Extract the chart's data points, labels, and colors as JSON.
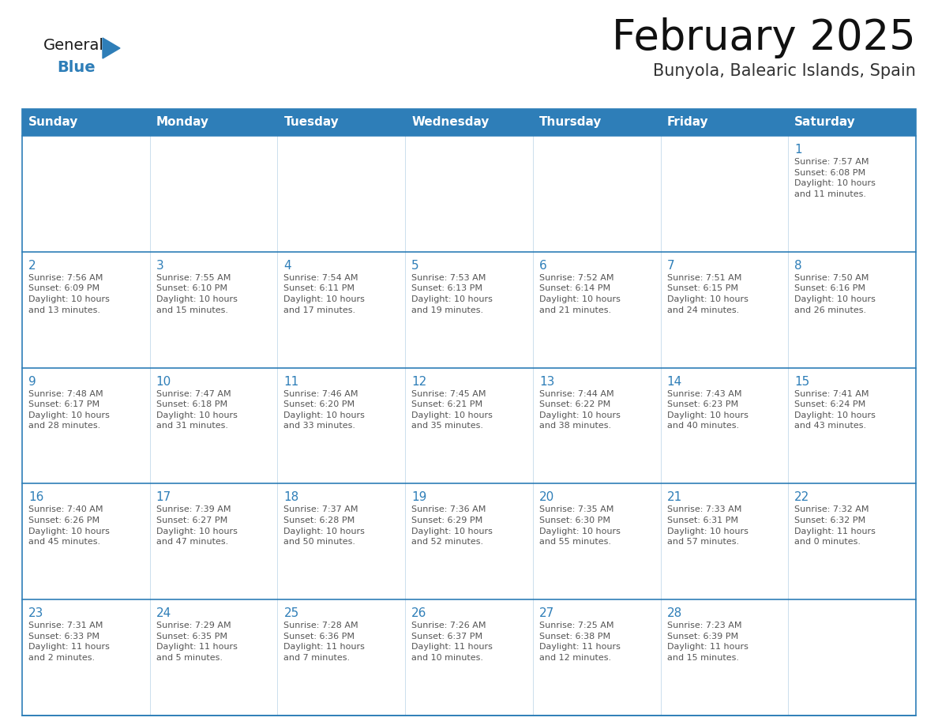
{
  "title": "February 2025",
  "subtitle": "Bunyola, Balearic Islands, Spain",
  "header_bg": "#2E7EB8",
  "header_text_color": "#FFFFFF",
  "cell_border_color": "#2E7EB8",
  "day_number_color": "#2E7EB8",
  "cell_text_color": "#555555",
  "bg_color": "#FFFFFF",
  "days_of_week": [
    "Sunday",
    "Monday",
    "Tuesday",
    "Wednesday",
    "Thursday",
    "Friday",
    "Saturday"
  ],
  "weeks": [
    [
      {
        "day": null,
        "info": null
      },
      {
        "day": null,
        "info": null
      },
      {
        "day": null,
        "info": null
      },
      {
        "day": null,
        "info": null
      },
      {
        "day": null,
        "info": null
      },
      {
        "day": null,
        "info": null
      },
      {
        "day": 1,
        "info": "Sunrise: 7:57 AM\nSunset: 6:08 PM\nDaylight: 10 hours\nand 11 minutes."
      }
    ],
    [
      {
        "day": 2,
        "info": "Sunrise: 7:56 AM\nSunset: 6:09 PM\nDaylight: 10 hours\nand 13 minutes."
      },
      {
        "day": 3,
        "info": "Sunrise: 7:55 AM\nSunset: 6:10 PM\nDaylight: 10 hours\nand 15 minutes."
      },
      {
        "day": 4,
        "info": "Sunrise: 7:54 AM\nSunset: 6:11 PM\nDaylight: 10 hours\nand 17 minutes."
      },
      {
        "day": 5,
        "info": "Sunrise: 7:53 AM\nSunset: 6:13 PM\nDaylight: 10 hours\nand 19 minutes."
      },
      {
        "day": 6,
        "info": "Sunrise: 7:52 AM\nSunset: 6:14 PM\nDaylight: 10 hours\nand 21 minutes."
      },
      {
        "day": 7,
        "info": "Sunrise: 7:51 AM\nSunset: 6:15 PM\nDaylight: 10 hours\nand 24 minutes."
      },
      {
        "day": 8,
        "info": "Sunrise: 7:50 AM\nSunset: 6:16 PM\nDaylight: 10 hours\nand 26 minutes."
      }
    ],
    [
      {
        "day": 9,
        "info": "Sunrise: 7:48 AM\nSunset: 6:17 PM\nDaylight: 10 hours\nand 28 minutes."
      },
      {
        "day": 10,
        "info": "Sunrise: 7:47 AM\nSunset: 6:18 PM\nDaylight: 10 hours\nand 31 minutes."
      },
      {
        "day": 11,
        "info": "Sunrise: 7:46 AM\nSunset: 6:20 PM\nDaylight: 10 hours\nand 33 minutes."
      },
      {
        "day": 12,
        "info": "Sunrise: 7:45 AM\nSunset: 6:21 PM\nDaylight: 10 hours\nand 35 minutes."
      },
      {
        "day": 13,
        "info": "Sunrise: 7:44 AM\nSunset: 6:22 PM\nDaylight: 10 hours\nand 38 minutes."
      },
      {
        "day": 14,
        "info": "Sunrise: 7:43 AM\nSunset: 6:23 PM\nDaylight: 10 hours\nand 40 minutes."
      },
      {
        "day": 15,
        "info": "Sunrise: 7:41 AM\nSunset: 6:24 PM\nDaylight: 10 hours\nand 43 minutes."
      }
    ],
    [
      {
        "day": 16,
        "info": "Sunrise: 7:40 AM\nSunset: 6:26 PM\nDaylight: 10 hours\nand 45 minutes."
      },
      {
        "day": 17,
        "info": "Sunrise: 7:39 AM\nSunset: 6:27 PM\nDaylight: 10 hours\nand 47 minutes."
      },
      {
        "day": 18,
        "info": "Sunrise: 7:37 AM\nSunset: 6:28 PM\nDaylight: 10 hours\nand 50 minutes."
      },
      {
        "day": 19,
        "info": "Sunrise: 7:36 AM\nSunset: 6:29 PM\nDaylight: 10 hours\nand 52 minutes."
      },
      {
        "day": 20,
        "info": "Sunrise: 7:35 AM\nSunset: 6:30 PM\nDaylight: 10 hours\nand 55 minutes."
      },
      {
        "day": 21,
        "info": "Sunrise: 7:33 AM\nSunset: 6:31 PM\nDaylight: 10 hours\nand 57 minutes."
      },
      {
        "day": 22,
        "info": "Sunrise: 7:32 AM\nSunset: 6:32 PM\nDaylight: 11 hours\nand 0 minutes."
      }
    ],
    [
      {
        "day": 23,
        "info": "Sunrise: 7:31 AM\nSunset: 6:33 PM\nDaylight: 11 hours\nand 2 minutes."
      },
      {
        "day": 24,
        "info": "Sunrise: 7:29 AM\nSunset: 6:35 PM\nDaylight: 11 hours\nand 5 minutes."
      },
      {
        "day": 25,
        "info": "Sunrise: 7:28 AM\nSunset: 6:36 PM\nDaylight: 11 hours\nand 7 minutes."
      },
      {
        "day": 26,
        "info": "Sunrise: 7:26 AM\nSunset: 6:37 PM\nDaylight: 11 hours\nand 10 minutes."
      },
      {
        "day": 27,
        "info": "Sunrise: 7:25 AM\nSunset: 6:38 PM\nDaylight: 11 hours\nand 12 minutes."
      },
      {
        "day": 28,
        "info": "Sunrise: 7:23 AM\nSunset: 6:39 PM\nDaylight: 11 hours\nand 15 minutes."
      },
      {
        "day": null,
        "info": null
      }
    ]
  ],
  "logo_text_general": "General",
  "logo_text_blue": "Blue",
  "logo_color_general": "#1a1a1a",
  "logo_color_blue": "#2E7EB8",
  "logo_triangle_color": "#2E7EB8",
  "fig_width": 11.88,
  "fig_height": 9.18,
  "dpi": 100
}
